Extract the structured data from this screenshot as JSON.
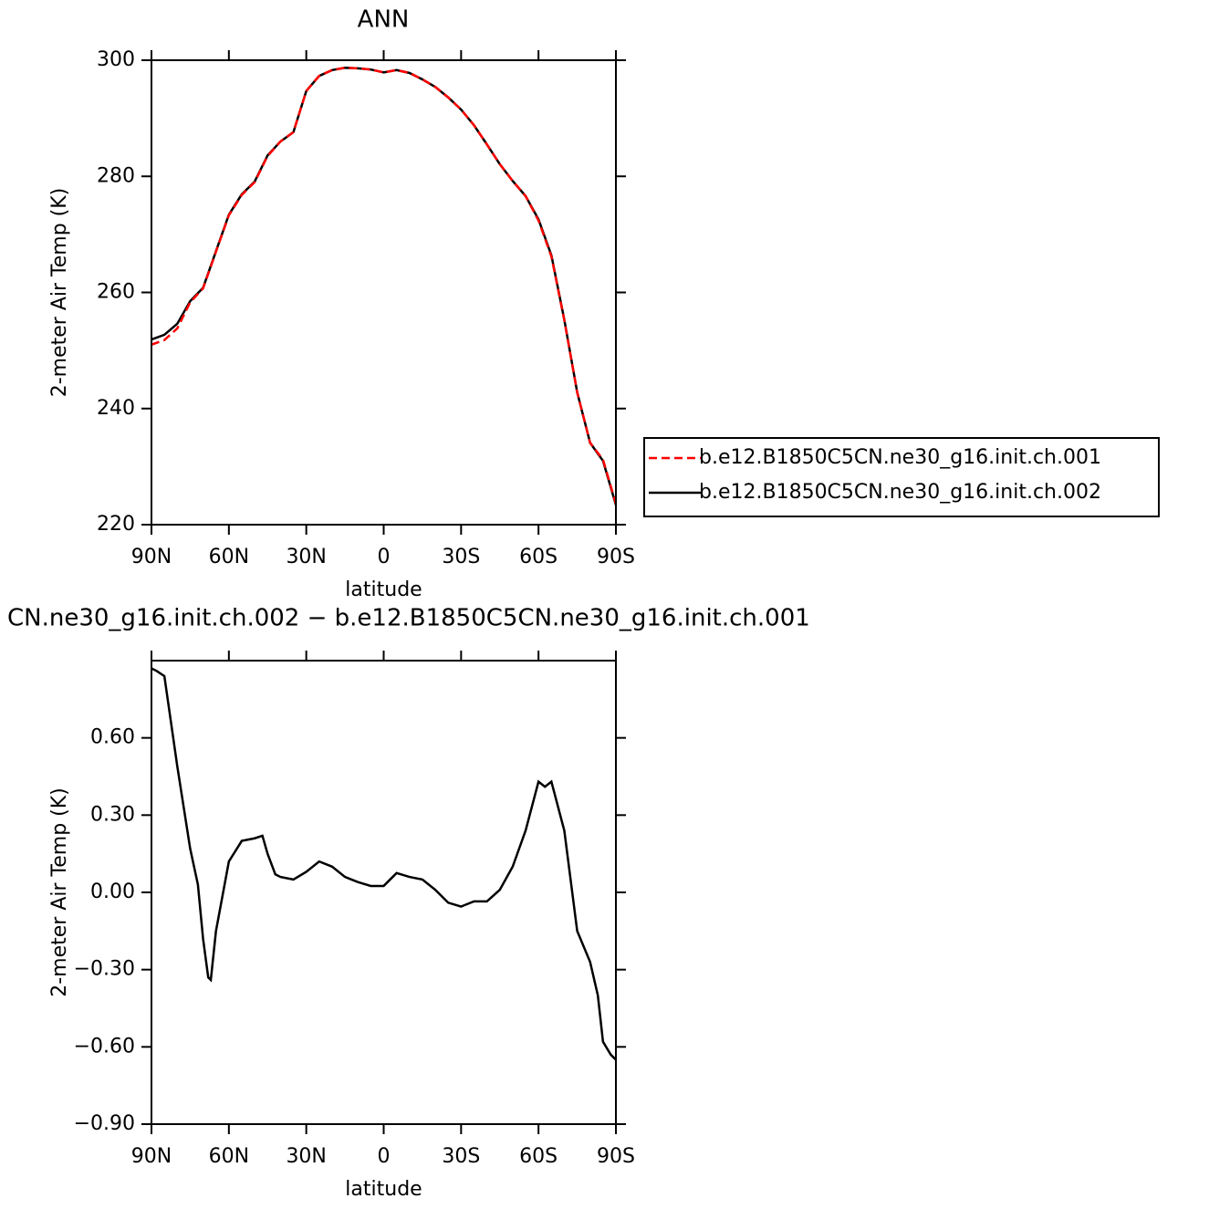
{
  "chart_data": [
    {
      "type": "line",
      "title": "ANN",
      "xlabel": "latitude",
      "ylabel": "2-meter Air Temp (K)",
      "x": [
        90,
        85,
        80,
        75,
        70,
        65,
        60,
        55,
        50,
        45,
        40,
        35,
        30,
        25,
        20,
        15,
        10,
        5,
        0,
        -5,
        -10,
        -15,
        -20,
        -25,
        -30,
        -35,
        -40,
        -45,
        -50,
        -55,
        -60,
        -65,
        -70,
        -75,
        -80,
        -85,
        -90
      ],
      "xlim": [
        90,
        -90
      ],
      "xticks": [
        {
          "value": 90,
          "label": "90N"
        },
        {
          "value": 60,
          "label": "60N"
        },
        {
          "value": 30,
          "label": "30N"
        },
        0,
        {
          "value": -30,
          "label": "30S"
        },
        {
          "value": -60,
          "label": "60S"
        },
        {
          "value": -90,
          "label": "90S"
        }
      ],
      "ylim": [
        220,
        300
      ],
      "yticks": [
        220,
        240,
        260,
        280,
        300
      ],
      "legend": "right",
      "series": [
        {
          "name": "b.e12.B1850C5CN.ne30_g16.init.ch.001",
          "color": "#ff0000",
          "style": "dashed",
          "values": [
            251.0,
            251.8,
            253.8,
            258.3,
            260.7,
            267.0,
            273.3,
            276.8,
            279.0,
            283.5,
            286.0,
            287.6,
            294.7,
            297.3,
            298.3,
            298.7,
            298.6,
            298.4,
            297.9,
            298.3,
            297.8,
            296.7,
            295.4,
            293.6,
            291.5,
            288.8,
            285.5,
            282.1,
            279.2,
            276.6,
            272.4,
            266.2,
            255.2,
            242.8,
            234.1,
            231.2,
            223.6
          ]
        },
        {
          "name": "b.e12.B1850C5CN.ne30_g16.init.ch.002",
          "color": "#000000",
          "style": "solid",
          "values": [
            251.9,
            252.7,
            254.6,
            258.5,
            260.8,
            267.1,
            273.4,
            276.9,
            279.1,
            283.6,
            286.0,
            287.6,
            294.7,
            297.3,
            298.3,
            298.7,
            298.6,
            298.4,
            297.9,
            298.3,
            297.8,
            296.7,
            295.4,
            293.6,
            291.5,
            288.8,
            285.5,
            282.1,
            279.2,
            276.6,
            272.6,
            266.4,
            255.3,
            242.8,
            234.1,
            231.0,
            223.4
          ]
        }
      ]
    },
    {
      "type": "line",
      "title": "CN.ne30_g16.init.ch.002 − b.e12.B1850C5CN.ne30_g16.init.ch.001",
      "xlabel": "latitude",
      "ylabel": "2-meter Air Temp (K)",
      "x": [
        90,
        88,
        85,
        80,
        75,
        72,
        70,
        68,
        67,
        65,
        60,
        55,
        50,
        47,
        45,
        42,
        40,
        35,
        30,
        25,
        20,
        15,
        10,
        5,
        0,
        -5,
        -10,
        -15,
        -20,
        -25,
        -30,
        -35,
        -40,
        -45,
        -50,
        -55,
        -60,
        -62.5,
        -65,
        -70,
        -75,
        -80,
        -83,
        -85,
        -88,
        -90
      ],
      "values": [
        0.87,
        0.86,
        0.84,
        0.49,
        0.17,
        0.03,
        -0.18,
        -0.33,
        -0.34,
        -0.15,
        0.12,
        0.2,
        0.21,
        0.22,
        0.15,
        0.07,
        0.06,
        0.05,
        0.08,
        0.12,
        0.1,
        0.06,
        0.04,
        0.025,
        0.025,
        0.075,
        0.06,
        0.05,
        0.01,
        -0.04,
        -0.055,
        -0.035,
        -0.035,
        0.01,
        0.1,
        0.24,
        0.43,
        0.41,
        0.43,
        0.24,
        -0.15,
        -0.27,
        -0.4,
        -0.58,
        -0.63,
        -0.65
      ],
      "color": "#000000",
      "xlim": [
        90,
        -90
      ],
      "xticks": [
        {
          "value": 90,
          "label": "90N"
        },
        {
          "value": 60,
          "label": "60N"
        },
        {
          "value": 30,
          "label": "30N"
        },
        0,
        {
          "value": -30,
          "label": "30S"
        },
        {
          "value": -60,
          "label": "60S"
        },
        {
          "value": -90,
          "label": "90S"
        }
      ],
      "ylim": [
        -0.9,
        0.9
      ],
      "yticks": [
        {
          "value": -0.9,
          "label": "−0.90"
        },
        {
          "value": -0.6,
          "label": "−0.60"
        },
        {
          "value": -0.3,
          "label": "−0.30"
        },
        {
          "value": 0,
          "label": "0.00"
        },
        {
          "value": 0.3,
          "label": "0.30"
        },
        {
          "value": 0.6,
          "label": "0.60"
        }
      ]
    }
  ]
}
